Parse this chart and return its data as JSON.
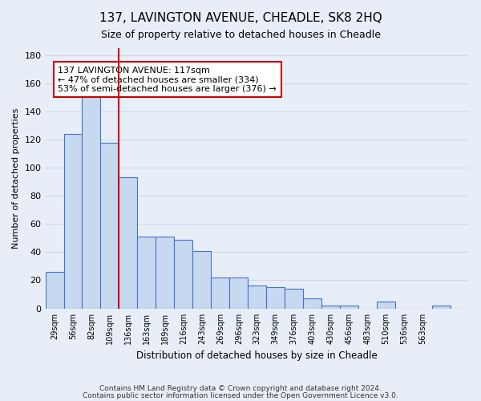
{
  "title": "137, LAVINGTON AVENUE, CHEADLE, SK8 2HQ",
  "subtitle": "Size of property relative to detached houses in Cheadle",
  "xlabel": "Distribution of detached houses by size in Cheadle",
  "ylabel": "Number of detached properties",
  "bar_values": [
    26,
    124,
    150,
    118,
    93,
    51,
    51,
    49,
    41,
    22,
    22,
    16,
    15,
    14,
    7,
    2,
    2,
    0,
    5,
    0,
    0,
    2,
    0
  ],
  "bin_labels": [
    "29sqm",
    "56sqm",
    "82sqm",
    "109sqm",
    "136sqm",
    "163sqm",
    "189sqm",
    "216sqm",
    "243sqm",
    "269sqm",
    "296sqm",
    "323sqm",
    "349sqm",
    "376sqm",
    "403sqm",
    "430sqm",
    "456sqm",
    "483sqm",
    "510sqm",
    "536sqm",
    "563sqm",
    "",
    ""
  ],
  "bar_color": "#c6d9f1",
  "bar_edge_color": "#4472c4",
  "red_line_color": "#cc0000",
  "annotation_line1": "137 LAVINGTON AVENUE: 117sqm",
  "annotation_line2": "← 47% of detached houses are smaller (334)",
  "annotation_line3": "53% of semi-detached houses are larger (376) →",
  "annotation_box_color": "#ffffff",
  "annotation_box_edge": "#cc0000",
  "ylim": [
    0,
    185
  ],
  "yticks": [
    0,
    20,
    40,
    60,
    80,
    100,
    120,
    140,
    160,
    180
  ],
  "grid_color": "#d0d8e8",
  "background_color": "#e8eef8",
  "footer1": "Contains HM Land Registry data © Crown copyright and database right 2024.",
  "footer2": "Contains public sector information licensed under the Open Government Licence v3.0."
}
